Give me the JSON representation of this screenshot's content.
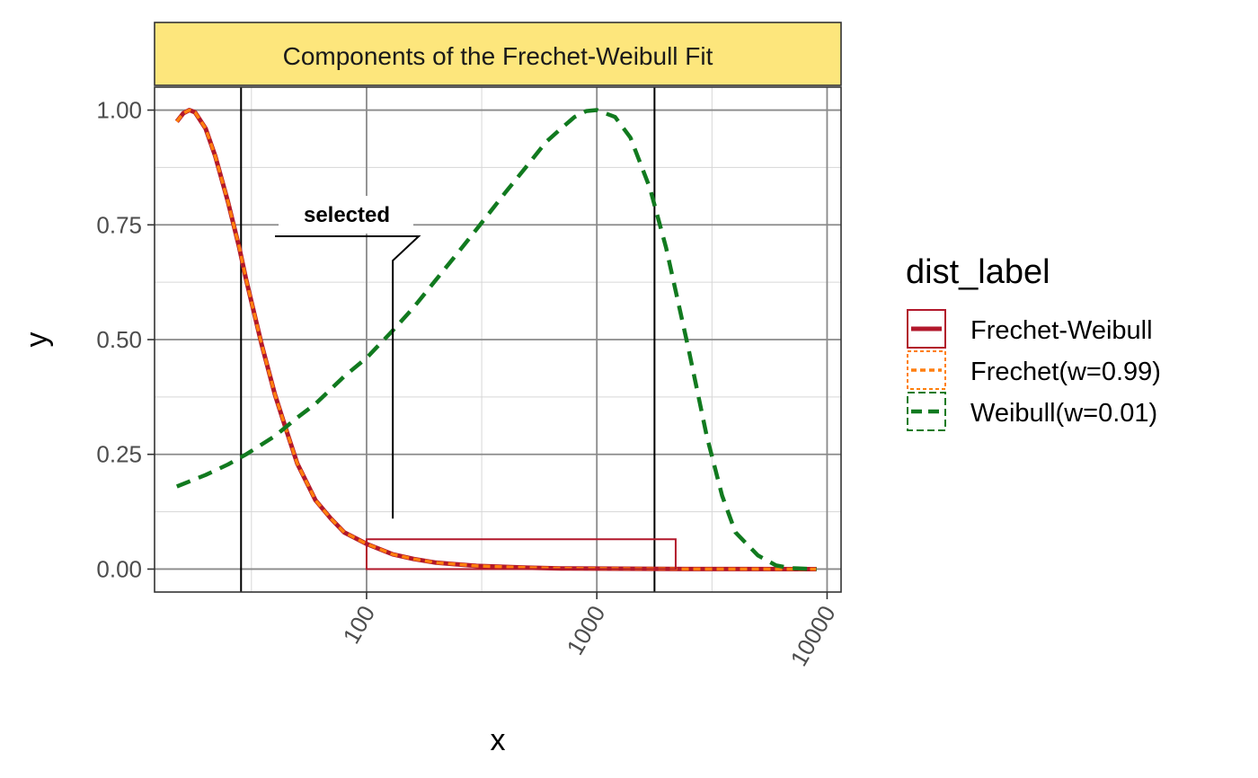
{
  "chart_data": {
    "type": "line",
    "title": "Components of the Frechet-Weibull Fit",
    "xlabel": "x",
    "ylabel": "y",
    "x_scale": "log10",
    "xlim": [
      12,
      11500
    ],
    "ylim": [
      -0.05,
      1.05
    ],
    "x_ticks": [
      100,
      1000,
      10000
    ],
    "x_tick_labels": [
      "100",
      "1000",
      "10000"
    ],
    "y_ticks": [
      0,
      0.25,
      0.5,
      0.75,
      1
    ],
    "y_tick_labels": [
      "0.00",
      "0.25",
      "0.50",
      "0.75",
      "1.00"
    ],
    "grid": true,
    "legend_position": "right",
    "legend_title": "dist_label",
    "series": [
      {
        "name": "Frechet-Weibull",
        "color": "#b2182b",
        "linestyle": "solid",
        "x": [
          15,
          16,
          17,
          18,
          20,
          22,
          25,
          28,
          30,
          35,
          40,
          45,
          50,
          60,
          70,
          80,
          100,
          130,
          160,
          200,
          300,
          500,
          700,
          1000,
          2000,
          4000,
          9000
        ],
        "y": [
          0.975,
          0.993,
          1.0,
          0.995,
          0.96,
          0.9,
          0.8,
          0.7,
          0.63,
          0.49,
          0.38,
          0.3,
          0.23,
          0.15,
          0.11,
          0.08,
          0.055,
          0.032,
          0.022,
          0.014,
          0.007,
          0.003,
          0.0015,
          0.001,
          0.0003,
          0.0001,
          0
        ]
      },
      {
        "name": "Frechet(w=0.99)",
        "color": "#ff7f0e",
        "linestyle": "dotted",
        "x": [
          15,
          16,
          17,
          18,
          20,
          22,
          25,
          28,
          30,
          35,
          40,
          45,
          50,
          60,
          70,
          80,
          100,
          130,
          160,
          200,
          300,
          500,
          700,
          1000,
          2000,
          4000,
          9000
        ],
        "y": [
          0.975,
          0.993,
          1.0,
          0.995,
          0.96,
          0.9,
          0.8,
          0.7,
          0.63,
          0.49,
          0.38,
          0.3,
          0.23,
          0.15,
          0.11,
          0.08,
          0.055,
          0.032,
          0.022,
          0.014,
          0.007,
          0.003,
          0.0015,
          0.001,
          0.0003,
          0.0001,
          0
        ]
      },
      {
        "name": "Weibull(w=0.01)",
        "color": "#117a1f",
        "linestyle": "dashed",
        "x": [
          15,
          20,
          25,
          30,
          40,
          50,
          60,
          80,
          100,
          130,
          160,
          200,
          250,
          300,
          400,
          500,
          600,
          700,
          800,
          900,
          1000,
          1200,
          1400,
          1700,
          2000,
          2500,
          3000,
          3500,
          4000,
          5000,
          6000,
          7000,
          9000
        ],
        "y": [
          0.18,
          0.205,
          0.228,
          0.25,
          0.29,
          0.33,
          0.36,
          0.42,
          0.46,
          0.52,
          0.57,
          0.63,
          0.69,
          0.74,
          0.82,
          0.88,
          0.93,
          0.96,
          0.985,
          0.998,
          1.0,
          0.985,
          0.94,
          0.83,
          0.7,
          0.48,
          0.29,
          0.16,
          0.08,
          0.03,
          0.008,
          0.002,
          0
        ]
      }
    ],
    "vlines": [
      28.5,
      1780
    ],
    "rectangle": {
      "x0": 100,
      "x1": 2200,
      "y0": 0,
      "y1": 0.065,
      "color": "#b2182b"
    },
    "annotation": {
      "label": "selected",
      "point": [
        130,
        0.11
      ]
    }
  }
}
